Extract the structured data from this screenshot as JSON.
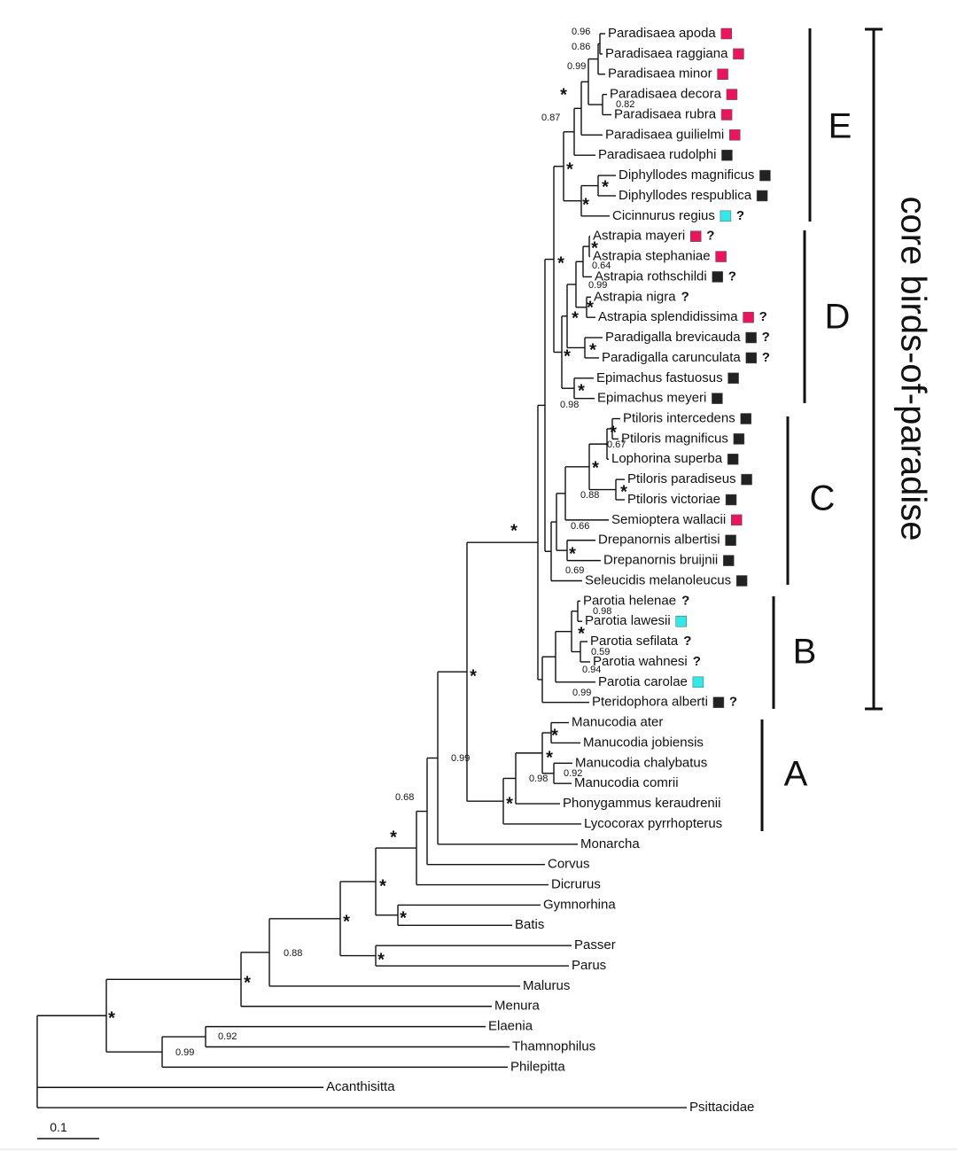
{
  "taxa": [
    {
      "name": "Paradisaea apoda",
      "marker": "#e8175d"
    },
    {
      "name": "Paradisaea raggiana",
      "marker": "#e8175d"
    },
    {
      "name": "Paradisaea minor",
      "marker": "#e8175d"
    },
    {
      "name": "Paradisaea decora",
      "marker": "#e8175d"
    },
    {
      "name": "Paradisaea rubra",
      "marker": "#e8175d"
    },
    {
      "name": "Paradisaea guilielmi",
      "marker": "#e8175d"
    },
    {
      "name": "Paradisaea rudolphi",
      "marker": "#222222"
    },
    {
      "name": "Diphyllodes magnificus",
      "marker": "#222222"
    },
    {
      "name": "Diphyllodes respublica",
      "marker": "#222222"
    },
    {
      "name": "Cicinnurus regius",
      "marker": "#33e8e8",
      "note": "?"
    },
    {
      "name": "Astrapia mayeri",
      "marker": "#e8175d",
      "note": "?"
    },
    {
      "name": "Astrapia stephaniae",
      "marker": "#e8175d"
    },
    {
      "name": "Astrapia rothschildi",
      "marker": "#222222",
      "note": "?"
    },
    {
      "name": "Astrapia nigra",
      "note": "?"
    },
    {
      "name": "Astrapia splendidissima",
      "marker": "#e8175d",
      "note": "?"
    },
    {
      "name": "Paradigalla brevicauda",
      "marker": "#222222",
      "note": "?"
    },
    {
      "name": "Paradigalla carunculata",
      "marker": "#222222",
      "note": "?"
    },
    {
      "name": "Epimachus fastuosus",
      "marker": "#222222"
    },
    {
      "name": "Epimachus meyeri",
      "marker": "#222222"
    },
    {
      "name": "Ptiloris intercedens",
      "marker": "#222222"
    },
    {
      "name": "Ptiloris magnificus",
      "marker": "#222222"
    },
    {
      "name": "Lophorina superba",
      "marker": "#222222"
    },
    {
      "name": "Ptiloris paradiseus",
      "marker": "#222222"
    },
    {
      "name": "Ptiloris victoriae",
      "marker": "#222222"
    },
    {
      "name": "Semioptera wallacii",
      "marker": "#e8175d"
    },
    {
      "name": "Drepanornis albertisi",
      "marker": "#222222"
    },
    {
      "name": "Drepanornis bruijnii",
      "marker": "#222222"
    },
    {
      "name": "Seleucidis melanoleucus",
      "marker": "#222222"
    },
    {
      "name": "Parotia helenae",
      "note": "?"
    },
    {
      "name": "Parotia lawesii",
      "marker": "#33e8e8"
    },
    {
      "name": "Parotia sefilata",
      "note": "?"
    },
    {
      "name": "Parotia wahnesi",
      "note": "?"
    },
    {
      "name": "Parotia carolae",
      "marker": "#33e8e8"
    },
    {
      "name": "Pteridophora alberti",
      "marker": "#222222",
      "note": "?"
    },
    {
      "name": "Manucodia ater"
    },
    {
      "name": "Manucodia jobiensis"
    },
    {
      "name": "Manucodia chalybatus"
    },
    {
      "name": "Manucodia comrii"
    },
    {
      "name": "Phonygammus keraudrenii"
    },
    {
      "name": "Lycocorax pyrrhopterus"
    },
    {
      "name": "Monarcha"
    },
    {
      "name": "Corvus"
    },
    {
      "name": "Dicrurus"
    },
    {
      "name": "Gymnorhina"
    },
    {
      "name": "Batis"
    },
    {
      "name": "Passer"
    },
    {
      "name": "Parus"
    },
    {
      "name": "Malurus"
    },
    {
      "name": "Menura"
    },
    {
      "name": "Elaenia"
    },
    {
      "name": "Thamnophilus"
    },
    {
      "name": "Philepitta"
    },
    {
      "name": "Acanthisitta"
    },
    {
      "name": "Psittacidae"
    }
  ],
  "supports": [
    0.96,
    0.86,
    0.99,
    "*",
    0.82,
    0.87,
    "*",
    "*",
    "*",
    "*",
    0.64,
    0.99,
    "*",
    "*",
    "*",
    "*",
    "*",
    "*",
    0.98,
    "*",
    0.67,
    "*",
    "*",
    0.88,
    0.66,
    "*",
    0.69,
    "*",
    0.98,
    "*",
    0.59,
    0.94,
    0.99,
    "*",
    0.99,
    "*",
    "*",
    0.98,
    0.92,
    "*",
    0.68,
    "*",
    "*",
    "*",
    "*",
    "*",
    0.88,
    "*",
    "*",
    0.92,
    0.99
  ],
  "clades": [
    {
      "label": "E"
    },
    {
      "label": "D"
    },
    {
      "label": "C"
    },
    {
      "label": "B"
    },
    {
      "label": "A"
    }
  ],
  "group_label": "core birds-of-paradise",
  "scale_bar": {
    "label": "0.1"
  }
}
